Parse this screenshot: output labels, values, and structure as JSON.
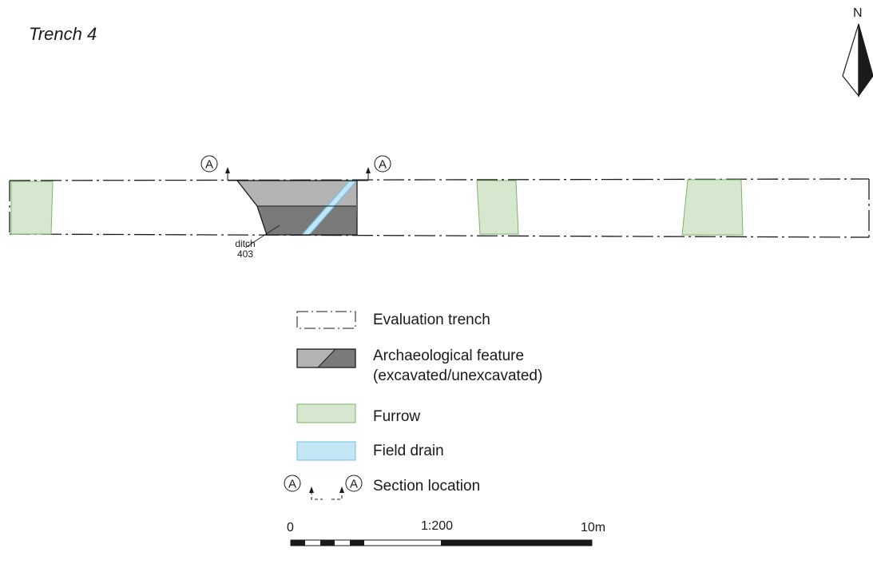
{
  "title": "Trench 4",
  "north_arrow": {
    "label": "N"
  },
  "section_marker": {
    "label": "A"
  },
  "feature_label": {
    "line1": "ditch",
    "line2": "403"
  },
  "legend": {
    "items": [
      {
        "key": "trench",
        "label": "Evaluation trench"
      },
      {
        "key": "feature",
        "label_line1": "Archaeological feature",
        "label_line2": "(excavated/unexcavated)"
      },
      {
        "key": "furrow",
        "label": "Furrow"
      },
      {
        "key": "drain",
        "label": "Field drain"
      },
      {
        "key": "section",
        "label": "Section location"
      }
    ]
  },
  "scale": {
    "ratio": "1:200",
    "start_label": "0",
    "end_label": "10m"
  },
  "colors": {
    "furrow_fill": "#d5e8cf",
    "furrow_stroke": "#7fb26a",
    "drain_fill": "#c4e6f4",
    "drain_stroke": "#6ec1e4",
    "feature_excavated": "#b3b3b3",
    "feature_unexcavated": "#7a7a7a",
    "line": "#1a1a1a"
  }
}
